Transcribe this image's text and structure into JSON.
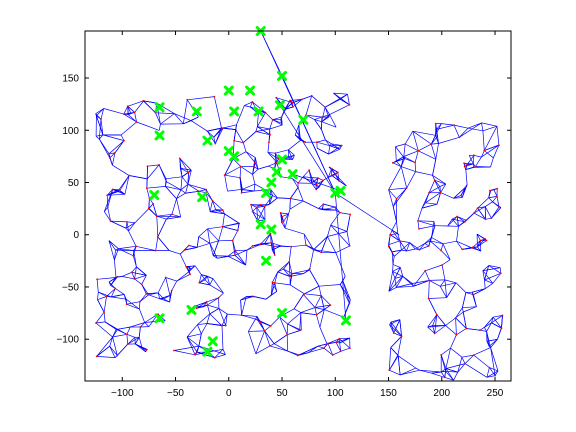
{
  "chart_data": {
    "type": "scatter",
    "title": "",
    "xlabel": "",
    "ylabel": "",
    "xlim": [
      -135,
      265
    ],
    "ylim": [
      -140,
      195
    ],
    "x_ticks": [
      -100,
      -50,
      0,
      50,
      100,
      150,
      200,
      250
    ],
    "y_ticks": [
      -100,
      -50,
      0,
      50,
      100,
      150
    ],
    "x_tick_labels": [
      "−100",
      "−50",
      "0",
      "50",
      "100",
      "150",
      "200",
      "250"
    ],
    "y_tick_labels": [
      "−100",
      "−50",
      "0",
      "50",
      "100",
      "150"
    ],
    "grid": false,
    "legend": "none",
    "network_color": "#0000ff",
    "node_color": "#ff0000",
    "marker_color": "#00ff00",
    "marker_shape": "x-cross",
    "regions": [
      {
        "xmin": -125,
        "xmax": 115,
        "ymin": -118,
        "ymax": 136,
        "count": 420
      },
      {
        "xmin": 150,
        "xmax": 258,
        "ymin": -140,
        "ymax": 110,
        "count": 190
      }
    ],
    "highlighted": [
      {
        "x": 30,
        "y": 195
      },
      {
        "x": 50,
        "y": 152
      },
      {
        "x": 0,
        "y": 138
      },
      {
        "x": 20,
        "y": 138
      },
      {
        "x": 48,
        "y": 124
      },
      {
        "x": -65,
        "y": 122
      },
      {
        "x": -30,
        "y": 118
      },
      {
        "x": 5,
        "y": 118
      },
      {
        "x": 28,
        "y": 118
      },
      {
        "x": 70,
        "y": 110
      },
      {
        "x": -65,
        "y": 95
      },
      {
        "x": -20,
        "y": 90
      },
      {
        "x": 0,
        "y": 80
      },
      {
        "x": 5,
        "y": 75
      },
      {
        "x": 50,
        "y": 72
      },
      {
        "x": 45,
        "y": 60
      },
      {
        "x": 60,
        "y": 58
      },
      {
        "x": 40,
        "y": 50
      },
      {
        "x": -70,
        "y": 38
      },
      {
        "x": -25,
        "y": 36
      },
      {
        "x": 35,
        "y": 40
      },
      {
        "x": 100,
        "y": 40
      },
      {
        "x": 105,
        "y": 42
      },
      {
        "x": 30,
        "y": 10
      },
      {
        "x": 40,
        "y": 5
      },
      {
        "x": 35,
        "y": -25
      },
      {
        "x": -35,
        "y": -72
      },
      {
        "x": 50,
        "y": -75
      },
      {
        "x": -65,
        "y": -80
      },
      {
        "x": 110,
        "y": -82
      },
      {
        "x": -15,
        "y": -102
      },
      {
        "x": -20,
        "y": -112
      }
    ],
    "long_links": [
      [
        30,
        195,
        100,
        40
      ],
      [
        30,
        195,
        50,
        152
      ],
      [
        50,
        152,
        100,
        40
      ],
      [
        100,
        40,
        160,
        0
      ],
      [
        48,
        124,
        100,
        40
      ],
      [
        100,
        40,
        110,
        -82
      ],
      [
        60,
        58,
        105,
        42
      ]
    ],
    "seed": 7
  }
}
